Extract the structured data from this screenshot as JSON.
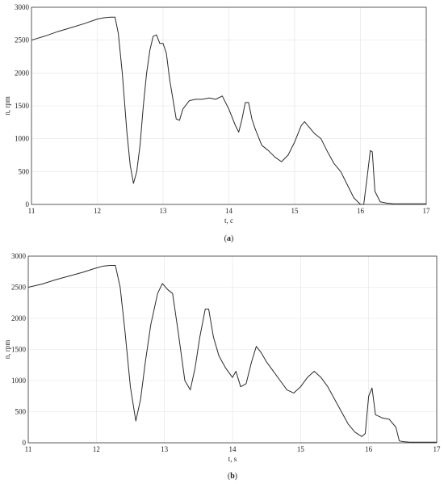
{
  "chart_data": [
    {
      "type": "line",
      "panel_label": "a",
      "xlabel": "t, c",
      "ylabel": "n, rpm",
      "xlim": [
        11,
        17
      ],
      "ylim": [
        0,
        3000
      ],
      "xticks": [
        "11",
        "12",
        "13",
        "14",
        "15",
        "16",
        "17"
      ],
      "yticks": [
        "0",
        "500",
        "1000",
        "1500",
        "2000",
        "2500",
        "3000"
      ],
      "grid": true,
      "series": [
        {
          "x": [
            11.0,
            11.2,
            11.4,
            11.6,
            11.8,
            12.0,
            12.1,
            12.2,
            12.27,
            12.32,
            12.38,
            12.45,
            12.5,
            12.55,
            12.6,
            12.65,
            12.7,
            12.75,
            12.8,
            12.85,
            12.9,
            12.95,
            13.0,
            13.05,
            13.1,
            13.15,
            13.2,
            13.25,
            13.3,
            13.4,
            13.5,
            13.6,
            13.7,
            13.8,
            13.9,
            14.0,
            14.1,
            14.15,
            14.2,
            14.25,
            14.3,
            14.35,
            14.4,
            14.5,
            14.6,
            14.7,
            14.8,
            14.9,
            15.0,
            15.1,
            15.15,
            15.2,
            15.3,
            15.4,
            15.5,
            15.6,
            15.7,
            15.8,
            15.9,
            16.0,
            16.05,
            16.1,
            16.15,
            16.18,
            16.22,
            16.3,
            16.4,
            16.5,
            16.6,
            17.0
          ],
          "y": [
            2500,
            2560,
            2630,
            2690,
            2750,
            2820,
            2840,
            2850,
            2850,
            2600,
            2000,
            1100,
            600,
            320,
            500,
            900,
            1500,
            2000,
            2350,
            2560,
            2580,
            2450,
            2450,
            2300,
            1900,
            1600,
            1300,
            1280,
            1450,
            1580,
            1600,
            1600,
            1620,
            1600,
            1650,
            1450,
            1200,
            1100,
            1300,
            1550,
            1550,
            1300,
            1150,
            900,
            820,
            720,
            650,
            750,
            950,
            1200,
            1260,
            1200,
            1080,
            1000,
            800,
            620,
            500,
            300,
            100,
            0,
            0,
            400,
            820,
            800,
            200,
            40,
            20,
            10,
            10,
            10
          ]
        }
      ]
    },
    {
      "type": "line",
      "panel_label": "b",
      "xlabel": "t, s",
      "ylabel": "n, rpm",
      "xlim": [
        11,
        17
      ],
      "ylim": [
        0,
        3000
      ],
      "xticks": [
        "11",
        "12",
        "13",
        "14",
        "15",
        "16",
        "17"
      ],
      "yticks": [
        "0",
        "500",
        "1000",
        "1500",
        "2000",
        "2500",
        "3000"
      ],
      "grid": true,
      "series": [
        {
          "x": [
            11.0,
            11.2,
            11.4,
            11.6,
            11.8,
            12.0,
            12.1,
            12.2,
            12.28,
            12.35,
            12.42,
            12.5,
            12.58,
            12.65,
            12.72,
            12.8,
            12.9,
            12.97,
            13.05,
            13.12,
            13.2,
            13.3,
            13.38,
            13.45,
            13.52,
            13.6,
            13.65,
            13.72,
            13.8,
            13.9,
            14.0,
            14.05,
            14.12,
            14.2,
            14.28,
            14.35,
            14.42,
            14.5,
            14.6,
            14.7,
            14.8,
            14.9,
            15.0,
            15.1,
            15.2,
            15.3,
            15.4,
            15.5,
            15.6,
            15.7,
            15.8,
            15.9,
            15.95,
            16.0,
            16.05,
            16.1,
            16.2,
            16.3,
            16.4,
            16.45,
            16.5,
            16.6,
            17.0
          ],
          "y": [
            2500,
            2550,
            2620,
            2680,
            2740,
            2810,
            2840,
            2850,
            2850,
            2500,
            1800,
            900,
            350,
            700,
            1300,
            1900,
            2400,
            2560,
            2460,
            2400,
            1800,
            1000,
            850,
            1200,
            1700,
            2150,
            2150,
            1700,
            1400,
            1200,
            1050,
            1150,
            900,
            950,
            1300,
            1550,
            1450,
            1300,
            1150,
            1000,
            850,
            800,
            900,
            1050,
            1150,
            1050,
            900,
            700,
            500,
            300,
            170,
            100,
            150,
            750,
            880,
            450,
            400,
            380,
            250,
            30,
            20,
            10,
            10
          ]
        }
      ]
    }
  ]
}
